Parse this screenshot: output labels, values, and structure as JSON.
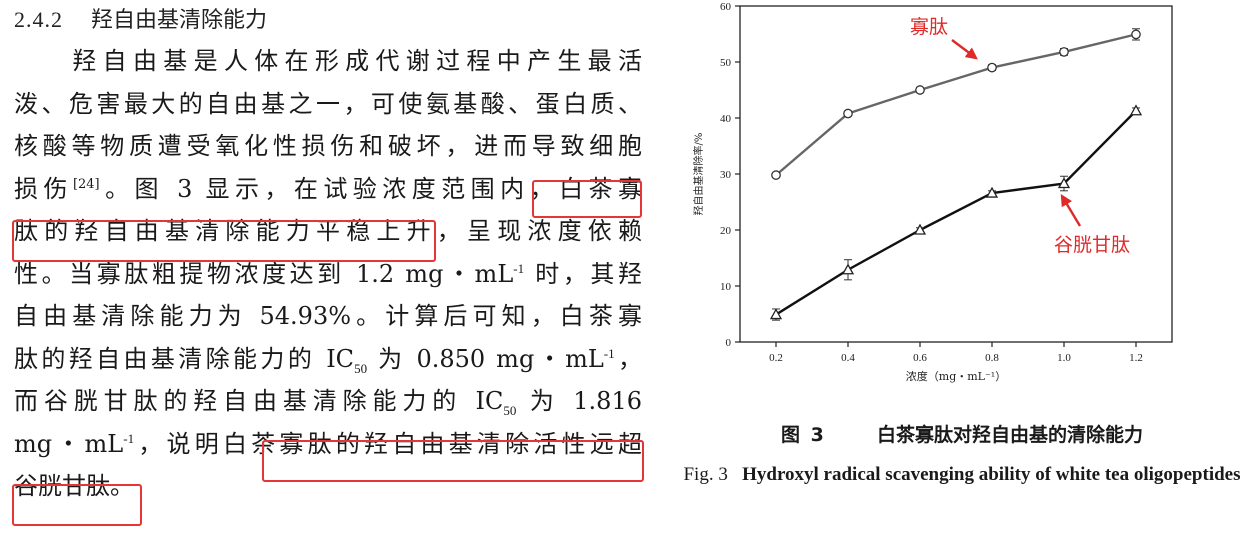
{
  "section": {
    "number": "2.4.2",
    "title": "羟自由基清除能力"
  },
  "paragraph": {
    "l1": "羟自由基是人体在形成代谢过程中产生最活",
    "l2": "泼、危害最大的自由基之一，可使氨基酸、蛋白质、",
    "l3": "核酸等物质遭受氧化性损伤和破坏，进而导致细胞",
    "l4a": "损伤",
    "l4ref": "[24]",
    "l4b": "。图 3 显示，在试验浓度范围内，白茶寡",
    "l5": "肽的羟自由基清除能力平稳上升，呈现浓度依赖",
    "l6a": "性。当寡肽粗提物浓度达到 1.2 mg・mL",
    "l6sup": "-1",
    "l6b": " 时，其羟",
    "l7": "自由基清除能力为 54.93%。计算后可知，白茶寡",
    "l8a": "肽的羟自由基清除能力的 IC",
    "l8sub": "50",
    "l8b": " 为 0.850 mg・mL",
    "l8sup": "-1",
    "l8c": "，",
    "l9a": "而谷胱甘肽的羟自由基清除能力的 IC",
    "l9sub": "50",
    "l9b": " 为 1.816",
    "l10a": "mg・mL",
    "l10sup": "-1",
    "l10b": "，说明白茶寡肽的羟自由基清除活性远超",
    "l11": "谷胱甘肽。"
  },
  "figure": {
    "caption_cn_label": "图 3",
    "caption_cn_text": "白茶寡肽对羟自由基的清除能力",
    "caption_en_label": "Fig. 3",
    "caption_en_text": "Hydroxyl radical scavenging ability of white tea oligopeptides",
    "annotation_peptide": "寡肽",
    "annotation_glutathione": "谷胱甘肽",
    "highlight_color": "#e53535"
  },
  "chart_data": {
    "type": "line",
    "xlabel": "浓度（mg・mL⁻¹）",
    "ylabel": "羟自由基清除率/%",
    "x": [
      0.2,
      0.4,
      0.6,
      0.8,
      1.0,
      1.2
    ],
    "x_ticks": [
      "0.2",
      "0.4",
      "0.6",
      "0.8",
      "1.0",
      "1.2"
    ],
    "y_ticks": [
      "0",
      "10",
      "20",
      "30",
      "40",
      "50",
      "60"
    ],
    "xlim": [
      0.1,
      1.3
    ],
    "ylim": [
      0,
      60
    ],
    "grid": false,
    "series": [
      {
        "name": "寡肽",
        "marker": "circle",
        "color": "#666666",
        "values": [
          29.8,
          40.8,
          45.0,
          49.0,
          51.8,
          54.93
        ],
        "errors": [
          0.4,
          0.4,
          0.4,
          0.5,
          0.6,
          1.0
        ]
      },
      {
        "name": "谷胱甘肽",
        "marker": "triangle",
        "color": "#111111",
        "values": [
          4.9,
          12.9,
          20.0,
          26.6,
          28.3,
          41.3
        ],
        "errors": [
          1.0,
          1.8,
          0.4,
          0.4,
          1.3,
          0.5
        ]
      }
    ]
  }
}
